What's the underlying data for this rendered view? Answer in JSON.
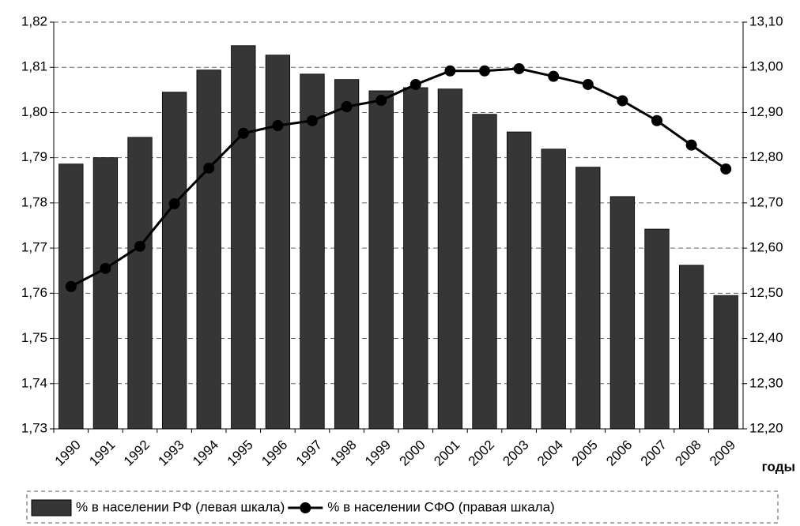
{
  "chart_data": {
    "type": "bar_line",
    "x_label": "годы",
    "categories": [
      "1990",
      "1991",
      "1992",
      "1993",
      "1994",
      "1995",
      "1996",
      "1997",
      "1998",
      "1999",
      "2000",
      "2001",
      "2002",
      "2003",
      "2004",
      "2005",
      "2006",
      "2007",
      "2008",
      "2009"
    ],
    "series": [
      {
        "name": "% в населении РФ (левая шкала)",
        "type": "bar",
        "color": "#363636",
        "axis": "y",
        "values": [
          1.7886,
          1.79,
          1.7945,
          1.8045,
          1.8094,
          1.8148,
          1.8127,
          1.8085,
          1.8073,
          1.8048,
          1.8055,
          1.8052,
          1.7996,
          1.7957,
          1.7919,
          1.7879,
          1.7814,
          1.7742,
          1.7662,
          1.7595
        ]
      },
      {
        "name": "% в населении СФО (правая шкала)",
        "type": "line",
        "color": "#000000",
        "axis": "y2",
        "values": [
          12.515,
          12.555,
          12.604,
          12.698,
          12.777,
          12.854,
          12.871,
          12.882,
          12.913,
          12.927,
          12.962,
          12.992,
          12.992,
          12.997,
          12.98,
          12.962,
          12.926,
          12.882,
          12.828,
          12.775
        ]
      }
    ],
    "ylim": [
      1.73,
      1.82
    ],
    "yticks": [
      {
        "value": 1.73,
        "label": "1,73"
      },
      {
        "value": 1.74,
        "label": "1,74"
      },
      {
        "value": 1.75,
        "label": "1,75"
      },
      {
        "value": 1.76,
        "label": "1,76"
      },
      {
        "value": 1.77,
        "label": "1,77"
      },
      {
        "value": 1.78,
        "label": "1,78"
      },
      {
        "value": 1.79,
        "label": "1,79"
      },
      {
        "value": 1.8,
        "label": "1,80"
      },
      {
        "value": 1.81,
        "label": "1,81"
      },
      {
        "value": 1.82,
        "label": "1,82"
      }
    ],
    "y2lim": [
      12.2,
      13.1
    ],
    "y2ticks": [
      {
        "value": 12.2,
        "label": "12,20"
      },
      {
        "value": 12.3,
        "label": "12,30"
      },
      {
        "value": 12.4,
        "label": "12,40"
      },
      {
        "value": 12.5,
        "label": "12,50"
      },
      {
        "value": 12.6,
        "label": "12,60"
      },
      {
        "value": 12.7,
        "label": "12,70"
      },
      {
        "value": 12.8,
        "label": "12,80"
      },
      {
        "value": 12.9,
        "label": "12,90"
      },
      {
        "value": 13.0,
        "label": "13,00"
      },
      {
        "value": 13.1,
        "label": "13,10"
      }
    ],
    "grid": true,
    "legend": "bottom"
  }
}
